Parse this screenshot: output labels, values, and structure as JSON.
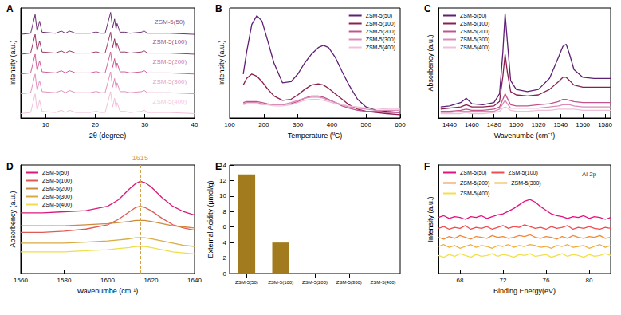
{
  "chart_data": [
    {
      "type": "line",
      "title": "A",
      "x_label": "2θ (degree)",
      "y_label": "Intensity (a.u.)",
      "x": [
        5,
        7,
        7.9,
        8.3,
        8.8,
        9.3,
        12,
        13.2,
        14,
        14.8,
        15.5,
        16,
        17.8,
        19,
        20,
        20.4,
        21,
        22,
        23.1,
        23.5,
        23.9,
        24.2,
        24.4,
        25,
        26,
        27,
        29.3,
        29.9,
        30.5,
        32,
        35,
        40
      ],
      "series": [
        {
          "name": "ZSM-5(50)",
          "color": "#5c1a66",
          "values": [
            76,
            77,
            94,
            79,
            88,
            78,
            77,
            79,
            77,
            79,
            78,
            77,
            77,
            77,
            78,
            78,
            77,
            77,
            96,
            82,
            90,
            81,
            86,
            78,
            78,
            77,
            78,
            79,
            77,
            77,
            77,
            76
          ]
        },
        {
          "name": "ZSM-5(100)",
          "color": "#8e2457",
          "values": [
            58,
            59,
            76,
            61,
            70,
            60,
            59,
            61,
            59,
            61,
            60,
            59,
            59,
            59,
            60,
            60,
            59,
            59,
            78,
            64,
            72,
            63,
            68,
            60,
            60,
            59,
            60,
            61,
            59,
            59,
            59,
            58
          ]
        },
        {
          "name": "ZSM-5(200)",
          "color": "#c94f8f",
          "values": [
            40,
            41,
            58,
            43,
            52,
            42,
            41,
            43,
            41,
            43,
            42,
            41,
            41,
            41,
            42,
            42,
            41,
            41,
            60,
            46,
            54,
            45,
            50,
            42,
            42,
            41,
            42,
            43,
            41,
            41,
            41,
            40
          ]
        },
        {
          "name": "ZSM-5(300)",
          "color": "#de86b8",
          "values": [
            22,
            23,
            40,
            25,
            34,
            24,
            23,
            25,
            23,
            25,
            24,
            23,
            23,
            23,
            24,
            24,
            23,
            23,
            42,
            28,
            36,
            27,
            32,
            24,
            24,
            23,
            24,
            25,
            23,
            23,
            23,
            22
          ]
        },
        {
          "name": "ZSM-5(400)",
          "color": "#f2b8d6",
          "values": [
            4,
            5,
            22,
            7,
            16,
            6,
            5,
            7,
            5,
            7,
            6,
            5,
            5,
            5,
            6,
            6,
            5,
            5,
            24,
            10,
            18,
            9,
            14,
            6,
            6,
            5,
            6,
            7,
            5,
            5,
            5,
            4
          ]
        }
      ],
      "xlim": [
        5,
        40
      ],
      "xticks": [
        10,
        20,
        30,
        40
      ],
      "ylim": [
        0,
        100
      ],
      "tick_labels": "x",
      "annotations": [
        {
          "text": "ZSM-5(50)",
          "x": 35,
          "y": 87,
          "color": "#5c1a66"
        },
        {
          "text": "ZSM-5(100)",
          "x": 35,
          "y": 69,
          "color": "#8e2457"
        },
        {
          "text": "ZSM-5(200)",
          "x": 35,
          "y": 51,
          "color": "#c94f8f"
        },
        {
          "text": "ZSM-5(300)",
          "x": 35,
          "y": 33,
          "color": "#de86b8"
        },
        {
          "text": "ZSM-5(400)",
          "x": 35,
          "y": 15,
          "color": "#f2b8d6"
        }
      ]
    },
    {
      "type": "line",
      "title": "B",
      "x_label": "Temperature (⁰C)",
      "y_label": "Intensity (a.u.)",
      "x": [
        140,
        150,
        165,
        180,
        195,
        210,
        230,
        255,
        280,
        300,
        320,
        340,
        360,
        375,
        390,
        410,
        430,
        450,
        475,
        500,
        530,
        560,
        600
      ],
      "series": [
        {
          "name": "ZSM-5(50)",
          "color": "#5e1f74",
          "values": [
            40,
            60,
            85,
            93,
            88,
            72,
            50,
            32,
            33,
            40,
            50,
            58,
            64,
            66,
            64,
            55,
            42,
            30,
            17,
            10,
            7,
            6,
            5
          ]
        },
        {
          "name": "ZSM-5(100)",
          "color": "#8a2050",
          "values": [
            30,
            36,
            40,
            38,
            33,
            27,
            20,
            16,
            17,
            21,
            26,
            30,
            31,
            30,
            27,
            22,
            17,
            12,
            8,
            6,
            5,
            4,
            3
          ]
        },
        {
          "name": "ZSM-5(200)",
          "color": "#c2548d",
          "values": [
            14,
            15,
            15,
            15,
            14,
            13,
            12,
            12,
            13,
            15,
            18,
            20,
            20,
            19,
            17,
            14,
            11,
            9,
            7,
            6,
            6,
            5,
            5
          ]
        },
        {
          "name": "ZSM-5(300)",
          "color": "#d98cb8",
          "values": [
            13,
            14,
            14,
            14,
            13,
            12,
            12,
            12,
            14,
            16,
            18,
            19,
            19,
            18,
            16,
            14,
            12,
            10,
            9,
            8,
            7,
            7,
            7
          ]
        },
        {
          "name": "ZSM-5(400)",
          "color": "#efc0d8",
          "values": [
            12,
            13,
            13,
            13,
            12,
            12,
            11,
            11,
            12,
            14,
            16,
            17,
            17,
            16,
            15,
            13,
            12,
            11,
            10,
            9,
            9,
            8,
            8
          ]
        }
      ],
      "xlim": [
        100,
        600
      ],
      "xticks": [
        100,
        200,
        300,
        400,
        500,
        600
      ],
      "ylim": [
        0,
        100
      ],
      "tick_labels": "x",
      "legend": "upper right"
    },
    {
      "type": "line",
      "title": "C",
      "x_label": "Wavenumbe (cm⁻¹)",
      "y_label": "Absorbency (a.u.)",
      "x": [
        1432,
        1440,
        1450,
        1455,
        1460,
        1470,
        1480,
        1485,
        1488,
        1490,
        1492,
        1495,
        1500,
        1510,
        1520,
        1530,
        1538,
        1542,
        1545,
        1548,
        1552,
        1560,
        1570,
        1585
      ],
      "series": [
        {
          "name": "ZSM-5(50)",
          "color": "#5e1f74",
          "values": [
            10,
            11,
            14,
            18,
            13,
            12,
            14,
            22,
            60,
            95,
            70,
            34,
            26,
            24,
            26,
            36,
            55,
            65,
            67,
            58,
            44,
            37,
            36,
            36
          ]
        },
        {
          "name": "ZSM-5(100)",
          "color": "#8a2050",
          "values": [
            8,
            9,
            10,
            12,
            10,
            10,
            11,
            15,
            38,
            58,
            42,
            24,
            21,
            20,
            21,
            26,
            33,
            37,
            37,
            34,
            30,
            28,
            28,
            28
          ]
        },
        {
          "name": "ZSM-5(200)",
          "color": "#c2548d",
          "values": [
            6,
            6,
            7,
            8,
            7,
            7,
            8,
            10,
            17,
            22,
            18,
            12,
            11,
            11,
            12,
            13,
            15,
            17,
            17,
            16,
            15,
            14,
            14,
            14
          ]
        },
        {
          "name": "ZSM-5(300)",
          "color": "#d98cb8",
          "values": [
            5,
            5,
            6,
            6,
            6,
            6,
            6,
            8,
            13,
            16,
            13,
            9,
            9,
            9,
            9,
            10,
            11,
            12,
            12,
            12,
            11,
            10,
            10,
            10
          ]
        },
        {
          "name": "ZSM-5(400)",
          "color": "#efc0d8",
          "values": [
            4,
            4,
            4,
            5,
            4,
            4,
            5,
            6,
            9,
            10,
            9,
            7,
            6,
            6,
            7,
            7,
            8,
            8,
            8,
            8,
            8,
            7,
            7,
            7
          ]
        }
      ],
      "xlim": [
        1430,
        1585
      ],
      "xticks": [
        1440,
        1460,
        1480,
        1500,
        1520,
        1540,
        1560,
        1580
      ],
      "ylim": [
        0,
        100
      ],
      "tick_labels": "x",
      "legend": "upper left"
    },
    {
      "type": "line",
      "title": "D",
      "x_label": "Wavenumbe (cm⁻¹)",
      "y_label": "Absorbency (a.u.)",
      "x": [
        1560,
        1570,
        1580,
        1590,
        1600,
        1605,
        1610,
        1613,
        1615,
        1617,
        1620,
        1625,
        1630,
        1635,
        1640
      ],
      "series": [
        {
          "name": "ZSM-5(50)",
          "color": "#d81b7a",
          "values": [
            56,
            56,
            57,
            58,
            62,
            68,
            78,
            83,
            85,
            84,
            80,
            70,
            62,
            57,
            54
          ]
        },
        {
          "name": "ZSM-5(100)",
          "color": "#e05a55",
          "values": [
            38,
            38,
            39,
            41,
            45,
            50,
            57,
            61,
            62,
            61,
            58,
            51,
            45,
            42,
            40
          ]
        },
        {
          "name": "ZSM-5(200)",
          "color": "#cd8a3c",
          "values": [
            44,
            44,
            44,
            45,
            46,
            47,
            48,
            49,
            49,
            49,
            48,
            46,
            44,
            43,
            42
          ]
        },
        {
          "name": "ZSM-5(300)",
          "color": "#d8ab40",
          "values": [
            28,
            28,
            28,
            29,
            30,
            31,
            32,
            33,
            33,
            33,
            32,
            30,
            28,
            26,
            25
          ]
        },
        {
          "name": "ZSM-5(400)",
          "color": "#ece04a",
          "values": [
            20,
            20,
            20,
            21,
            22,
            23,
            24,
            25,
            25,
            25,
            24,
            22,
            20,
            19,
            18
          ]
        }
      ],
      "xlim": [
        1560,
        1640
      ],
      "xticks": [
        1560,
        1580,
        1600,
        1620,
        1640
      ],
      "ylim": [
        0,
        100
      ],
      "tick_labels": "x",
      "legend": "upper left",
      "annotations": [
        {
          "text": "1615",
          "x": 1615,
          "color": "#d4a24a"
        }
      ]
    },
    {
      "type": "bar",
      "title": "E",
      "y_label": "External Acidity (μmol/g)",
      "categories": [
        "ZSM-5(50)",
        "ZSM-5(100)",
        "ZSM-5(200)",
        "ZSM-5(300)",
        "ZSM-5(400)"
      ],
      "values": [
        12.8,
        4.0,
        0,
        0,
        0
      ],
      "color": "#a27b1e",
      "ylim": [
        0,
        14
      ],
      "yticks": [
        0,
        2,
        4,
        6,
        8,
        10,
        12,
        14
      ]
    },
    {
      "type": "line",
      "title": "F",
      "x_label": "Binding Energy(eV)",
      "y_label": "Intensity (a.u.)",
      "x": [
        66,
        66.5,
        67,
        67.5,
        68,
        68.5,
        69,
        69.5,
        70,
        70.5,
        71,
        71.5,
        72,
        72.5,
        73,
        73.5,
        74,
        74.5,
        75,
        75.5,
        76,
        76.5,
        77,
        77.5,
        78,
        78.5,
        79,
        79.5,
        80,
        80.5,
        81,
        81.5,
        82
      ],
      "series": [
        {
          "name": "ZSM-5(50)",
          "color": "#e4127f",
          "values": [
            62,
            64,
            61,
            63,
            62,
            60,
            63,
            62,
            64,
            61,
            63,
            65,
            66,
            69,
            72,
            76,
            80,
            82,
            79,
            74,
            70,
            66,
            64,
            63,
            61,
            63,
            62,
            64,
            61,
            63,
            62,
            60,
            62
          ]
        },
        {
          "name": "ZSM-5(100)",
          "color": "#ec4e52",
          "values": [
            50,
            52,
            49,
            51,
            50,
            53,
            49,
            51,
            50,
            52,
            49,
            51,
            53,
            50,
            52,
            51,
            54,
            52,
            50,
            51,
            49,
            52,
            50,
            51,
            53,
            49,
            51,
            50,
            52,
            50,
            49,
            51,
            50
          ]
        },
        {
          "name": "ZSM-5(200)",
          "color": "#ee8a3a",
          "values": [
            40,
            38,
            41,
            39,
            42,
            40,
            38,
            41,
            40,
            39,
            42,
            40,
            41,
            39,
            40,
            42,
            41,
            43,
            40,
            39,
            41,
            40,
            38,
            41,
            39,
            42,
            40,
            39,
            41,
            40,
            42,
            39,
            40
          ]
        },
        {
          "name": "ZSM-5(300)",
          "color": "#f0ae3a",
          "values": [
            30,
            32,
            29,
            31,
            28,
            30,
            32,
            29,
            31,
            30,
            28,
            31,
            30,
            32,
            29,
            31,
            30,
            32,
            31,
            29,
            30,
            28,
            31,
            30,
            32,
            29,
            30,
            31,
            28,
            30,
            32,
            29,
            31
          ]
        },
        {
          "name": "ZSM-5(400)",
          "color": "#f2e04a",
          "values": [
            20,
            18,
            21,
            19,
            22,
            20,
            18,
            21,
            19,
            20,
            22,
            19,
            21,
            20,
            18,
            21,
            20,
            22,
            19,
            20,
            21,
            18,
            20,
            22,
            19,
            21,
            20,
            18,
            21,
            19,
            20,
            22,
            20
          ]
        }
      ],
      "xlim": [
        66,
        82
      ],
      "xticks": [
        68,
        72,
        76,
        80
      ],
      "ylim": [
        0,
        120
      ],
      "tick_labels": "x",
      "legend": "upper left",
      "annotations": [
        {
          "text": "Al 2p",
          "x": 80,
          "y": 110
        }
      ]
    }
  ]
}
